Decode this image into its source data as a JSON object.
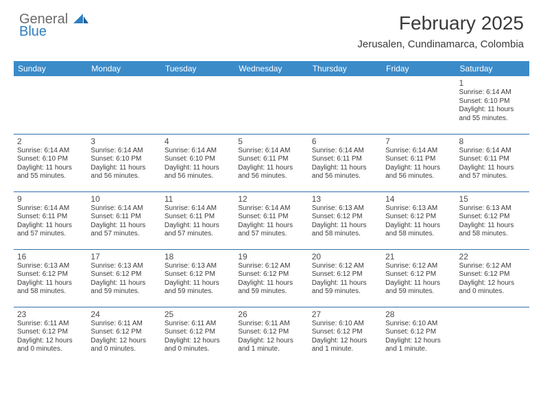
{
  "logo": {
    "general": "General",
    "blue": "Blue"
  },
  "title": "February 2025",
  "location": "Jerusalen, Cundinamarca, Colombia",
  "colors": {
    "header_bg": "#3b8bc9",
    "header_text": "#ffffff",
    "row_border": "#2f6ea8",
    "text": "#3a3a3a",
    "logo_gray": "#6a6a6a",
    "logo_blue": "#2f7fc2",
    "background": "#ffffff"
  },
  "typography": {
    "title_fontsize": 28,
    "location_fontsize": 15,
    "dayheader_fontsize": 12,
    "daynum_fontsize": 12,
    "dayinfo_fontsize": 10
  },
  "day_headers": [
    "Sunday",
    "Monday",
    "Tuesday",
    "Wednesday",
    "Thursday",
    "Friday",
    "Saturday"
  ],
  "weeks": [
    [
      null,
      null,
      null,
      null,
      null,
      null,
      {
        "n": "1",
        "sunrise": "Sunrise: 6:14 AM",
        "sunset": "Sunset: 6:10 PM",
        "daylight": "Daylight: 11 hours and 55 minutes."
      }
    ],
    [
      {
        "n": "2",
        "sunrise": "Sunrise: 6:14 AM",
        "sunset": "Sunset: 6:10 PM",
        "daylight": "Daylight: 11 hours and 55 minutes."
      },
      {
        "n": "3",
        "sunrise": "Sunrise: 6:14 AM",
        "sunset": "Sunset: 6:10 PM",
        "daylight": "Daylight: 11 hours and 56 minutes."
      },
      {
        "n": "4",
        "sunrise": "Sunrise: 6:14 AM",
        "sunset": "Sunset: 6:10 PM",
        "daylight": "Daylight: 11 hours and 56 minutes."
      },
      {
        "n": "5",
        "sunrise": "Sunrise: 6:14 AM",
        "sunset": "Sunset: 6:11 PM",
        "daylight": "Daylight: 11 hours and 56 minutes."
      },
      {
        "n": "6",
        "sunrise": "Sunrise: 6:14 AM",
        "sunset": "Sunset: 6:11 PM",
        "daylight": "Daylight: 11 hours and 56 minutes."
      },
      {
        "n": "7",
        "sunrise": "Sunrise: 6:14 AM",
        "sunset": "Sunset: 6:11 PM",
        "daylight": "Daylight: 11 hours and 56 minutes."
      },
      {
        "n": "8",
        "sunrise": "Sunrise: 6:14 AM",
        "sunset": "Sunset: 6:11 PM",
        "daylight": "Daylight: 11 hours and 57 minutes."
      }
    ],
    [
      {
        "n": "9",
        "sunrise": "Sunrise: 6:14 AM",
        "sunset": "Sunset: 6:11 PM",
        "daylight": "Daylight: 11 hours and 57 minutes."
      },
      {
        "n": "10",
        "sunrise": "Sunrise: 6:14 AM",
        "sunset": "Sunset: 6:11 PM",
        "daylight": "Daylight: 11 hours and 57 minutes."
      },
      {
        "n": "11",
        "sunrise": "Sunrise: 6:14 AM",
        "sunset": "Sunset: 6:11 PM",
        "daylight": "Daylight: 11 hours and 57 minutes."
      },
      {
        "n": "12",
        "sunrise": "Sunrise: 6:14 AM",
        "sunset": "Sunset: 6:11 PM",
        "daylight": "Daylight: 11 hours and 57 minutes."
      },
      {
        "n": "13",
        "sunrise": "Sunrise: 6:13 AM",
        "sunset": "Sunset: 6:12 PM",
        "daylight": "Daylight: 11 hours and 58 minutes."
      },
      {
        "n": "14",
        "sunrise": "Sunrise: 6:13 AM",
        "sunset": "Sunset: 6:12 PM",
        "daylight": "Daylight: 11 hours and 58 minutes."
      },
      {
        "n": "15",
        "sunrise": "Sunrise: 6:13 AM",
        "sunset": "Sunset: 6:12 PM",
        "daylight": "Daylight: 11 hours and 58 minutes."
      }
    ],
    [
      {
        "n": "16",
        "sunrise": "Sunrise: 6:13 AM",
        "sunset": "Sunset: 6:12 PM",
        "daylight": "Daylight: 11 hours and 58 minutes."
      },
      {
        "n": "17",
        "sunrise": "Sunrise: 6:13 AM",
        "sunset": "Sunset: 6:12 PM",
        "daylight": "Daylight: 11 hours and 59 minutes."
      },
      {
        "n": "18",
        "sunrise": "Sunrise: 6:13 AM",
        "sunset": "Sunset: 6:12 PM",
        "daylight": "Daylight: 11 hours and 59 minutes."
      },
      {
        "n": "19",
        "sunrise": "Sunrise: 6:12 AM",
        "sunset": "Sunset: 6:12 PM",
        "daylight": "Daylight: 11 hours and 59 minutes."
      },
      {
        "n": "20",
        "sunrise": "Sunrise: 6:12 AM",
        "sunset": "Sunset: 6:12 PM",
        "daylight": "Daylight: 11 hours and 59 minutes."
      },
      {
        "n": "21",
        "sunrise": "Sunrise: 6:12 AM",
        "sunset": "Sunset: 6:12 PM",
        "daylight": "Daylight: 11 hours and 59 minutes."
      },
      {
        "n": "22",
        "sunrise": "Sunrise: 6:12 AM",
        "sunset": "Sunset: 6:12 PM",
        "daylight": "Daylight: 12 hours and 0 minutes."
      }
    ],
    [
      {
        "n": "23",
        "sunrise": "Sunrise: 6:11 AM",
        "sunset": "Sunset: 6:12 PM",
        "daylight": "Daylight: 12 hours and 0 minutes."
      },
      {
        "n": "24",
        "sunrise": "Sunrise: 6:11 AM",
        "sunset": "Sunset: 6:12 PM",
        "daylight": "Daylight: 12 hours and 0 minutes."
      },
      {
        "n": "25",
        "sunrise": "Sunrise: 6:11 AM",
        "sunset": "Sunset: 6:12 PM",
        "daylight": "Daylight: 12 hours and 0 minutes."
      },
      {
        "n": "26",
        "sunrise": "Sunrise: 6:11 AM",
        "sunset": "Sunset: 6:12 PM",
        "daylight": "Daylight: 12 hours and 1 minute."
      },
      {
        "n": "27",
        "sunrise": "Sunrise: 6:10 AM",
        "sunset": "Sunset: 6:12 PM",
        "daylight": "Daylight: 12 hours and 1 minute."
      },
      {
        "n": "28",
        "sunrise": "Sunrise: 6:10 AM",
        "sunset": "Sunset: 6:12 PM",
        "daylight": "Daylight: 12 hours and 1 minute."
      },
      null
    ]
  ]
}
